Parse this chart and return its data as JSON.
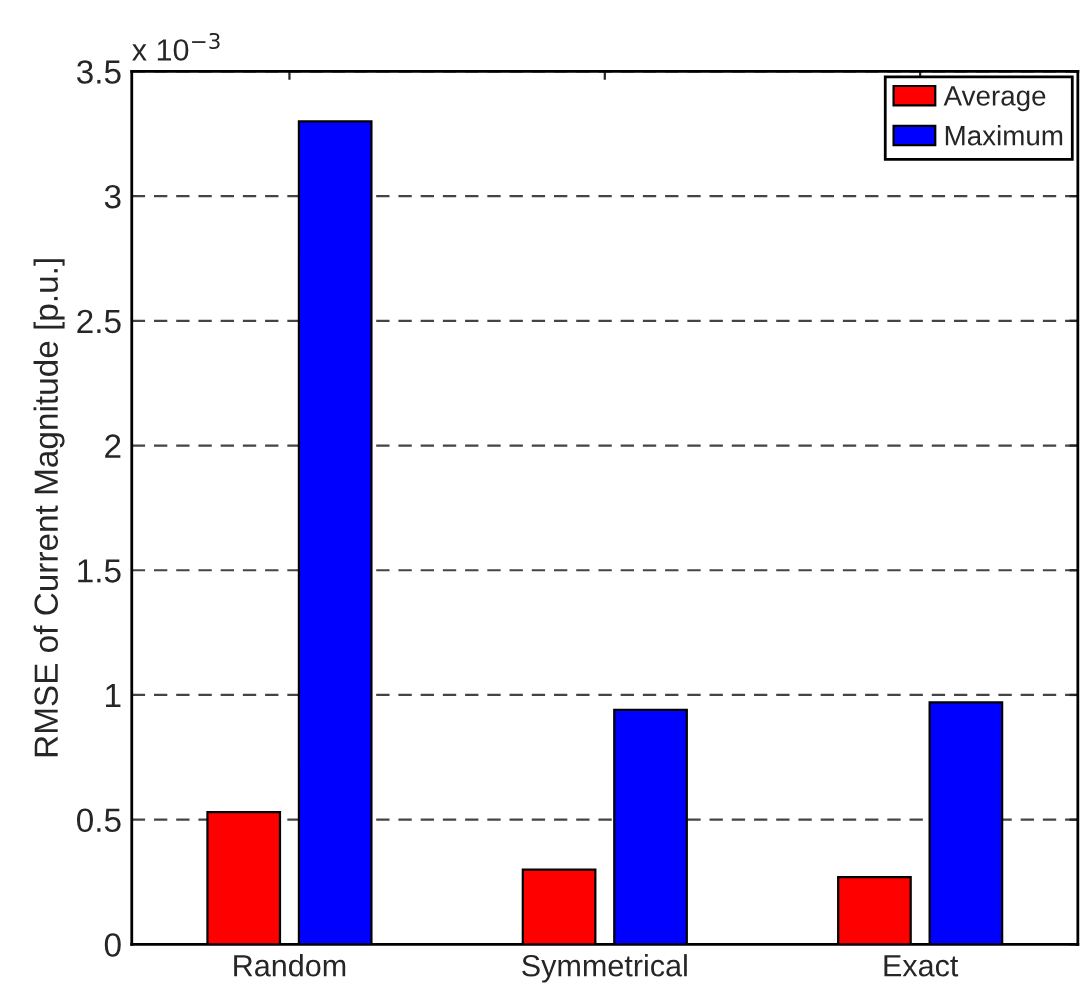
{
  "chart_data": {
    "type": "bar",
    "ylabel": "RMSE of Current Magnitude [p.u.]",
    "categories": [
      "Random",
      "Symmetrical",
      "Exact"
    ],
    "series": [
      {
        "name": "Average",
        "color": "#ff0000",
        "values": [
          0.53,
          0.3,
          0.27
        ]
      },
      {
        "name": "Maximum",
        "color": "#0000ff",
        "values": [
          3.3,
          0.94,
          0.97
        ]
      }
    ],
    "ylim": [
      0,
      3.5
    ],
    "yticks": [
      0,
      0.5,
      1,
      1.5,
      2,
      2.5,
      3,
      3.5
    ],
    "grid": "y",
    "legend": "top right",
    "annotations": [
      "x 10$^{−3}$"
    ]
  }
}
